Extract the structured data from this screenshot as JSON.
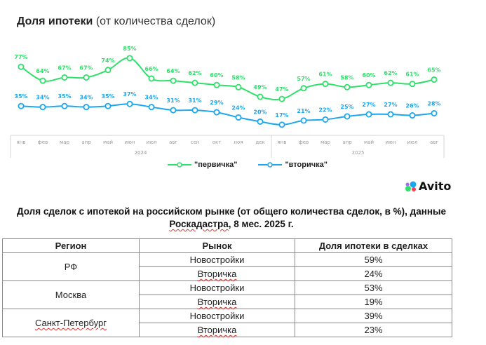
{
  "chart": {
    "title_bold": "Доля ипотеки",
    "title_rest": "(от количества сделок)",
    "legend": [
      {
        "label": "\"первичка\"",
        "color": "#2ee06a"
      },
      {
        "label": "\"вторичка\"",
        "color": "#1aa7ee"
      }
    ],
    "years": [
      "2024",
      "2025"
    ]
  },
  "chart_data": {
    "type": "line",
    "title": "Доля ипотеки (от количества сделок)",
    "categories": [
      "янв",
      "фев",
      "мар",
      "апр",
      "май",
      "июн",
      "июл",
      "авг",
      "сен",
      "окт",
      "ноя",
      "дек",
      "янв",
      "фев",
      "мар",
      "апр",
      "май",
      "июн",
      "июл",
      "авг"
    ],
    "category_groups": [
      {
        "label": "2024",
        "from": 0,
        "to": 11
      },
      {
        "label": "2025",
        "from": 12,
        "to": 19
      }
    ],
    "series": [
      {
        "name": "\"первичка\"",
        "color": "#2ee06a",
        "values": [
          77,
          64,
          67,
          67,
          74,
          85,
          66,
          64,
          62,
          60,
          58,
          49,
          47,
          57,
          61,
          58,
          60,
          62,
          61,
          65
        ]
      },
      {
        "name": "\"вторичка\"",
        "color": "#1aa7ee",
        "values": [
          35,
          34,
          35,
          34,
          35,
          37,
          34,
          31,
          31,
          29,
          24,
          20,
          17,
          21,
          22,
          25,
          27,
          27,
          26,
          28
        ]
      }
    ],
    "value_suffix": "%",
    "legend_position": "bottom",
    "grid": false
  },
  "logo": {
    "text": "Avito"
  },
  "table": {
    "title_line1": "Доля сделок с ипотекой на российском рынке (от общего количества сделок, в %), данные",
    "title_line2_a": "Роскадастра",
    "title_line2_b": ", 8 мес. 2025 г.",
    "headers": [
      "Регион",
      "Рынок",
      "Доля ипотеки в сделках"
    ],
    "rows": [
      {
        "region": "РФ",
        "items": [
          {
            "market": "Новостройки",
            "share": "59%"
          },
          {
            "market": "Вторичка",
            "share": "24%"
          }
        ]
      },
      {
        "region": "Москва",
        "items": [
          {
            "market": "Новостройки",
            "share": "53%"
          },
          {
            "market": "Вторичка",
            "share": "19%"
          }
        ]
      },
      {
        "region": "Санкт-Петербург",
        "items": [
          {
            "market": "Новостройки",
            "share": "39%"
          },
          {
            "market": "Вторичка",
            "share": "23%"
          }
        ]
      }
    ]
  }
}
